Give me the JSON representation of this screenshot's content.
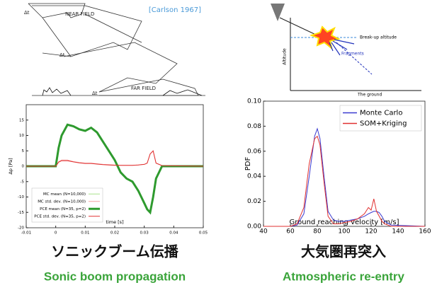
{
  "chart_data": [
    {
      "type": "line",
      "xlabel": "time [s]",
      "ylabel": "Δp [Pa]",
      "x": [
        -0.01,
        0,
        0.001,
        0.002,
        0.004,
        0.006,
        0.008,
        0.01,
        0.012,
        0.014,
        0.016,
        0.018,
        0.02,
        0.022,
        0.024,
        0.026,
        0.028,
        0.029,
        0.03,
        0.031,
        0.032,
        0.033,
        0.034,
        0.036,
        0.05
      ],
      "series": [
        {
          "name": "MC mean (N=10,000)",
          "color": "#a8e08a",
          "width": 1,
          "values": [
            0,
            0,
            6,
            10,
            13.5,
            13,
            12,
            11.5,
            12.5,
            11,
            8,
            5,
            2,
            -2,
            -4,
            -5,
            -8,
            -10,
            -12,
            -14,
            -15,
            -10,
            -4,
            0,
            0
          ]
        },
        {
          "name": "MC std. dev. (N=10,000)",
          "color": "#f4a0a0",
          "width": 1,
          "values": [
            0,
            0,
            1.5,
            2,
            2,
            1.5,
            1.2,
            1,
            1,
            0.8,
            0.6,
            0.5,
            0.4,
            0.3,
            0.3,
            0.3,
            0.4,
            0.5,
            0.6,
            1,
            4,
            5,
            1,
            0.2,
            0
          ]
        },
        {
          "name": "PCE mean (N=35, p=2)",
          "color": "#2e9a2e",
          "width": 3,
          "values": [
            0,
            0,
            6,
            10,
            13.5,
            13,
            12,
            11.5,
            12.5,
            11,
            8,
            5,
            2,
            -2,
            -4,
            -5,
            -8,
            -10,
            -12,
            -14,
            -15,
            -10,
            -4,
            0,
            0
          ]
        },
        {
          "name": "PCE std. dev. (N=35, p=2)",
          "color": "#e03030",
          "width": 1,
          "values": [
            0,
            0,
            1.3,
            1.8,
            1.8,
            1.4,
            1.1,
            0.9,
            0.9,
            0.7,
            0.5,
            0.4,
            0.3,
            0.3,
            0.3,
            0.3,
            0.4,
            0.5,
            0.6,
            1,
            4,
            5,
            1,
            0.2,
            0
          ]
        }
      ],
      "xlim": [
        -0.01,
        0.05
      ],
      "xticks": [
        -0.01,
        0,
        0.01,
        0.02,
        0.03,
        0.04,
        0.05
      ],
      "ylim": [
        -20,
        20
      ],
      "yticks": [
        -20,
        -15,
        -10,
        -5,
        0,
        5,
        10,
        15
      ],
      "legend": "lower left"
    },
    {
      "type": "line",
      "xlabel": "Ground reaching velocity [m/s]",
      "ylabel": "PDF",
      "x": [
        40,
        60,
        65,
        70,
        74,
        78,
        80,
        82,
        85,
        88,
        92,
        96,
        100,
        105,
        110,
        115,
        118,
        120,
        122,
        124,
        126,
        128,
        130,
        135,
        160
      ],
      "series": [
        {
          "name": "Monte Carlo",
          "color": "#3a3ad0",
          "width": 1,
          "values": [
            0,
            0,
            0.001,
            0.01,
            0.04,
            0.072,
            0.078,
            0.07,
            0.04,
            0.012,
            0.005,
            0.004,
            0.004,
            0.005,
            0.006,
            0.008,
            0.01,
            0.011,
            0.012,
            0.012,
            0.011,
            0.008,
            0.004,
            0.001,
            0
          ]
        },
        {
          "name": "SOM+Kriging",
          "color": "#e03030",
          "width": 1,
          "values": [
            0,
            0,
            0.002,
            0.015,
            0.05,
            0.07,
            0.072,
            0.065,
            0.035,
            0.008,
            0.002,
            0.002,
            0.003,
            0.004,
            0.006,
            0.01,
            0.015,
            0.013,
            0.022,
            0.012,
            0.008,
            0.004,
            0.002,
            0,
            0
          ]
        }
      ],
      "xlim": [
        40,
        160
      ],
      "xticks": [
        40,
        60,
        80,
        100,
        120,
        140,
        160
      ],
      "ylim": [
        0,
        0.1
      ],
      "yticks": [
        {
          "value": 0,
          "label": "0.00"
        },
        0.02,
        0.04,
        0.06,
        0.08,
        {
          "value": 0.1,
          "label": "0.10"
        }
      ],
      "legend": "upper right"
    }
  ],
  "left_panel": {
    "citation": "[Carlson 1967]",
    "near_field": "NEAR FIELD",
    "far_field": "FAR FIELD",
    "delta": "Δt",
    "caption_jp": "ソニックブーム伝播",
    "caption_en": "Sonic boom propagation"
  },
  "right_panel": {
    "breakup": "Break-up altitude",
    "altitude": "Altitude",
    "fragments": "Fragments",
    "ground": "The ground",
    "caption_jp": "大気圏再突入",
    "caption_en": "Atmospheric re-entry"
  }
}
